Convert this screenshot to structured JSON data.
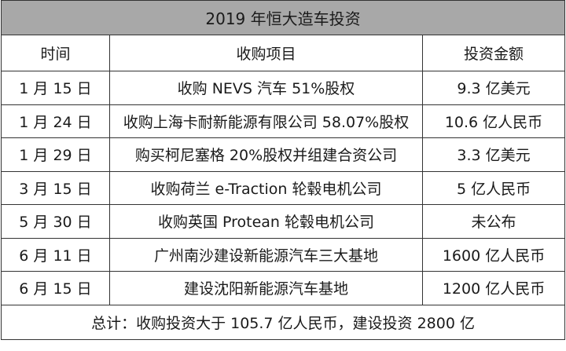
{
  "table": {
    "title": "2019 年恒大造车投资",
    "headers": [
      "时间",
      "收购项目",
      "投资金额"
    ],
    "rows": [
      {
        "date": "1 月 15 日",
        "project": "收购 NEVS 汽车 51%股权",
        "amount": "9.3 亿美元"
      },
      {
        "date": "1 月 24 日",
        "project": "收购上海卡耐新能源有限公司 58.07%股权",
        "amount": "10.6 亿人民币"
      },
      {
        "date": "1 月 29 日",
        "project": "购买柯尼塞格 20%股权并组建合资公司",
        "amount": "3.3 亿美元"
      },
      {
        "date": "3 月 15 日",
        "project": "收购荷兰 e-Traction 轮毂电机公司",
        "amount": "5 亿人民币"
      },
      {
        "date": "5 月 30 日",
        "project": "收购英国 Protean 轮毂电机公司",
        "amount": "未公布"
      },
      {
        "date": "6 月 11 日",
        "project": "广州南沙建设新能源汽车三大基地",
        "amount": "1600 亿人民币"
      },
      {
        "date": "6 月 15 日",
        "project": "建设沈阳新能源汽车基地",
        "amount": "1200 亿人民币"
      }
    ],
    "total": "总计：收购投资大于 105.7 亿人民币，建设投资 2800 亿"
  },
  "colors": {
    "title_bg": "#a8a8a8",
    "border": "#333333",
    "text": "#1a1a1a"
  }
}
